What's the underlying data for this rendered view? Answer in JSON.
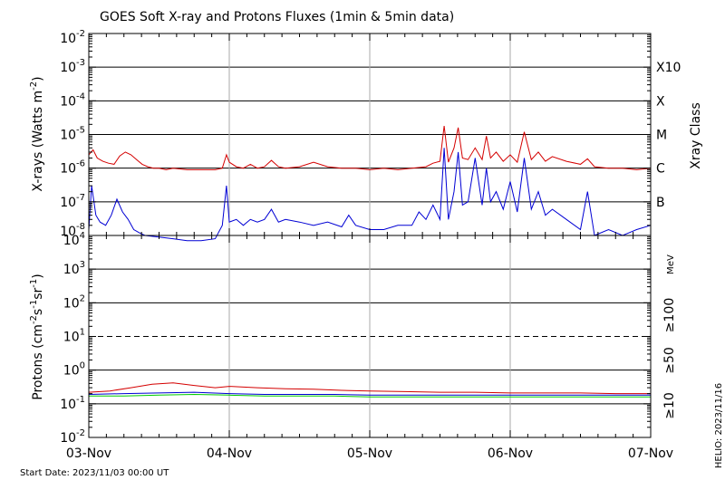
{
  "chart_data": [
    {
      "type": "line",
      "title": "GOES Soft X-ray and Protons Fluxes   (1min & 5min data)",
      "ylabel_main": "X-rays (Watts m",
      "ylabel_exp": "-2",
      "ylabel_tail": ")",
      "y_scale": "log",
      "ylim": [
        1e-08,
        0.01
      ],
      "y_tick_exponents": [
        "-2",
        "-3",
        "-4",
        "-5",
        "-6",
        "-7",
        "-8"
      ],
      "x_ticks": [
        "03-Nov",
        "04-Nov",
        "05-Nov",
        "06-Nov",
        "07-Nov"
      ],
      "right_axis_title": "Xray Class",
      "class_labels": [
        "X10",
        "X",
        "M",
        "C",
        "B"
      ],
      "grid": true,
      "series": [
        {
          "color": "#d40000",
          "x_days": [
            0.0,
            0.03,
            0.06,
            0.1,
            0.14,
            0.18,
            0.22,
            0.26,
            0.3,
            0.34,
            0.38,
            0.42,
            0.46,
            0.5,
            0.55,
            0.6,
            0.7,
            0.8,
            0.9,
            0.95,
            0.98,
            1.0,
            1.05,
            1.1,
            1.15,
            1.2,
            1.25,
            1.3,
            1.35,
            1.4,
            1.5,
            1.6,
            1.7,
            1.8,
            1.9,
            2.0,
            2.1,
            2.2,
            2.3,
            2.4,
            2.45,
            2.5,
            2.53,
            2.56,
            2.6,
            2.63,
            2.66,
            2.7,
            2.75,
            2.8,
            2.83,
            2.86,
            2.9,
            2.95,
            3.0,
            3.05,
            3.1,
            3.15,
            3.2,
            3.25,
            3.3,
            3.4,
            3.5,
            3.55,
            3.6,
            3.7,
            3.8,
            3.9,
            4.0
          ],
          "y": [
            2.5e-06,
            3.5e-06,
            2e-06,
            1.6e-06,
            1.4e-06,
            1.3e-06,
            2.3e-06,
            3e-06,
            2.5e-06,
            1.8e-06,
            1.3e-06,
            1.1e-06,
            1e-06,
            1e-06,
            9e-07,
            1e-06,
            9e-07,
            9e-07,
            9e-07,
            1e-06,
            2.5e-06,
            1.5e-06,
            1.1e-06,
            1e-06,
            1.3e-06,
            1e-06,
            1.1e-06,
            1.7e-06,
            1.1e-06,
            1e-06,
            1.1e-06,
            1.5e-06,
            1.1e-06,
            1e-06,
            1e-06,
            9e-07,
            1e-06,
            9e-07,
            1e-06,
            1.1e-06,
            1.4e-06,
            1.6e-06,
            1.8e-05,
            1.5e-06,
            4e-06,
            1.6e-05,
            2e-06,
            1.8e-06,
            4e-06,
            1.8e-06,
            9e-06,
            2e-06,
            3e-06,
            1.6e-06,
            2.5e-06,
            1.5e-06,
            1.2e-05,
            1.8e-06,
            3e-06,
            1.6e-06,
            2.2e-06,
            1.6e-06,
            1.3e-06,
            1.9e-06,
            1.1e-06,
            1e-06,
            1e-06,
            9e-07,
            1e-06
          ]
        },
        {
          "color": "#0000d4",
          "x_days": [
            0.0,
            0.02,
            0.05,
            0.08,
            0.12,
            0.16,
            0.2,
            0.24,
            0.28,
            0.32,
            0.36,
            0.4,
            0.5,
            0.6,
            0.7,
            0.8,
            0.9,
            0.95,
            0.98,
            1.0,
            1.05,
            1.1,
            1.15,
            1.2,
            1.25,
            1.3,
            1.35,
            1.4,
            1.5,
            1.6,
            1.7,
            1.8,
            1.85,
            1.9,
            2.0,
            2.1,
            2.2,
            2.3,
            2.35,
            2.4,
            2.45,
            2.5,
            2.53,
            2.56,
            2.6,
            2.63,
            2.66,
            2.7,
            2.75,
            2.8,
            2.83,
            2.86,
            2.9,
            2.95,
            3.0,
            3.05,
            3.1,
            3.15,
            3.2,
            3.25,
            3.3,
            3.4,
            3.5,
            3.55,
            3.6,
            3.7,
            3.8,
            3.9,
            4.0
          ],
          "y": [
            1.5e-08,
            3e-07,
            4e-08,
            2.5e-08,
            2e-08,
            4e-08,
            1.2e-07,
            5e-08,
            3e-08,
            1.5e-08,
            1.2e-08,
            1e-08,
            9e-09,
            8e-09,
            7e-09,
            7e-09,
            8e-09,
            2e-08,
            3e-07,
            2.5e-08,
            3e-08,
            2e-08,
            3e-08,
            2.5e-08,
            3e-08,
            6e-08,
            2.5e-08,
            3e-08,
            2.5e-08,
            2e-08,
            2.5e-08,
            1.8e-08,
            4e-08,
            2e-08,
            1.5e-08,
            1.5e-08,
            2e-08,
            2e-08,
            5e-08,
            3e-08,
            8e-08,
            3e-08,
            4e-06,
            3e-08,
            2e-07,
            3e-06,
            8e-08,
            1e-07,
            2e-06,
            8e-08,
            1e-06,
            1e-07,
            2e-07,
            6e-08,
            4e-07,
            5e-08,
            2e-06,
            6e-08,
            2e-07,
            4e-08,
            6e-08,
            3e-08,
            1.5e-08,
            2e-07,
            1e-08,
            1.5e-08,
            1e-08,
            1.5e-08,
            2e-08
          ]
        }
      ]
    },
    {
      "type": "line",
      "ylabel_main": "Protons (cm",
      "ylabel_exp1": "-2",
      "ylabel_mid": "s",
      "ylabel_exp2": "-1",
      "ylabel_mid2": "sr",
      "ylabel_exp3": "-1",
      "ylabel_tail": ")",
      "y_scale": "log",
      "ylim": [
        0.01,
        10000
      ],
      "y_tick_exponents": [
        "4",
        "3",
        "2",
        "1",
        "0",
        "-1",
        "-2"
      ],
      "x_ticks": [
        "03-Nov",
        "04-Nov",
        "05-Nov",
        "06-Nov",
        "07-Nov"
      ],
      "threshold": 10,
      "unit_label": "MeV",
      "grid": true,
      "series": [
        {
          "name": "≥100",
          "color": "#00cc00",
          "x_days": [
            0.0,
            0.25,
            0.5,
            0.75,
            1.0,
            1.25,
            1.5,
            1.75,
            2.0,
            2.25,
            2.5,
            2.75,
            3.0,
            3.25,
            3.5,
            3.75,
            4.0
          ],
          "y": [
            0.17,
            0.17,
            0.18,
            0.19,
            0.18,
            0.17,
            0.17,
            0.17,
            0.16,
            0.16,
            0.16,
            0.16,
            0.16,
            0.16,
            0.16,
            0.16,
            0.16
          ]
        },
        {
          "name": "≥50",
          "color": "#0000d4",
          "x_days": [
            0.0,
            0.25,
            0.5,
            0.75,
            1.0,
            1.25,
            1.5,
            1.75,
            2.0,
            2.25,
            2.5,
            2.75,
            3.0,
            3.25,
            3.5,
            3.75,
            4.0
          ],
          "y": [
            0.19,
            0.2,
            0.21,
            0.22,
            0.2,
            0.19,
            0.19,
            0.19,
            0.18,
            0.18,
            0.18,
            0.18,
            0.18,
            0.18,
            0.18,
            0.18,
            0.18
          ]
        },
        {
          "name": "≥10",
          "color": "#d40000",
          "x_days": [
            0.0,
            0.15,
            0.3,
            0.45,
            0.6,
            0.75,
            0.9,
            1.0,
            1.2,
            1.4,
            1.6,
            1.8,
            2.0,
            2.25,
            2.5,
            2.75,
            3.0,
            3.25,
            3.5,
            3.75,
            4.0
          ],
          "y": [
            0.22,
            0.24,
            0.3,
            0.38,
            0.42,
            0.35,
            0.3,
            0.33,
            0.3,
            0.28,
            0.27,
            0.25,
            0.24,
            0.23,
            0.22,
            0.22,
            0.21,
            0.21,
            0.21,
            0.2,
            0.2
          ]
        }
      ]
    }
  ],
  "footer": {
    "start_date": "Start Date: 2023/11/03 00:00 UT",
    "source": "HELIO: 2023/11/16"
  }
}
